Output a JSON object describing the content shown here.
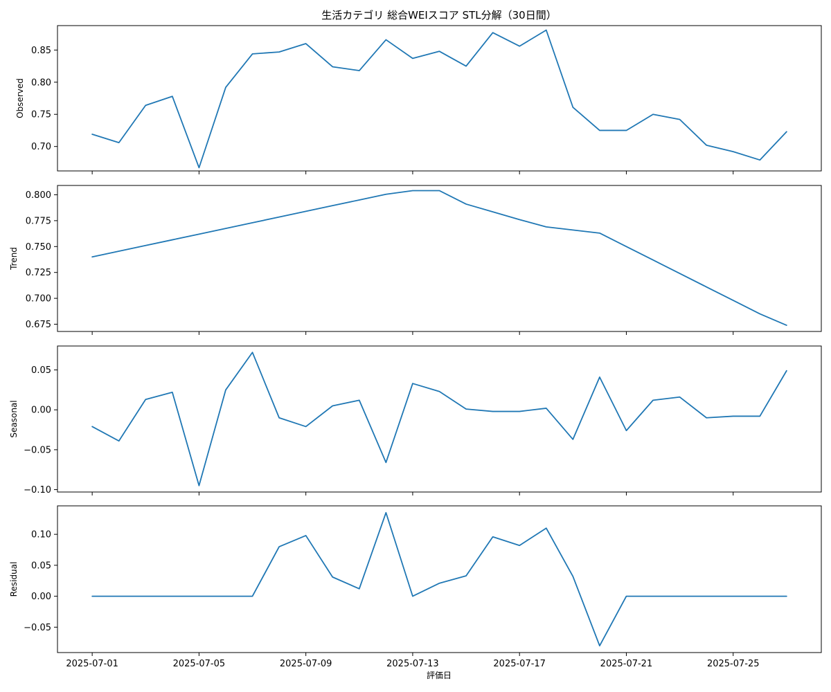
{
  "colors": {
    "line": "#1f77b4",
    "axis": "#000000",
    "background": "#ffffff"
  },
  "chart_data": {
    "type": "line",
    "title": "生活カテゴリ 総合WEIスコア STL分解（30日間）",
    "xlabel": "評価日",
    "grid": false,
    "x_start": "2025-07-01",
    "x_end": "2025-07-27",
    "x_ticks": [
      "2025-07-01",
      "2025-07-05",
      "2025-07-09",
      "2025-07-13",
      "2025-07-17",
      "2025-07-21",
      "2025-07-25"
    ],
    "x": [
      "2025-07-01",
      "2025-07-02",
      "2025-07-03",
      "2025-07-04",
      "2025-07-05",
      "2025-07-06",
      "2025-07-07",
      "2025-07-08",
      "2025-07-09",
      "2025-07-10",
      "2025-07-11",
      "2025-07-12",
      "2025-07-13",
      "2025-07-14",
      "2025-07-15",
      "2025-07-16",
      "2025-07-17",
      "2025-07-18",
      "2025-07-19",
      "2025-07-20",
      "2025-07-21",
      "2025-07-22",
      "2025-07-23",
      "2025-07-24",
      "2025-07-25",
      "2025-07-26",
      "2025-07-27"
    ],
    "panels": [
      {
        "ylabel": "Observed",
        "ylim": [
          0.662,
          0.888
        ],
        "yticks": [
          0.7,
          0.75,
          0.8,
          0.85
        ],
        "ytick_labels": [
          "0.70",
          "0.75",
          "0.80",
          "0.85"
        ],
        "values": [
          0.719,
          0.706,
          0.764,
          0.778,
          0.667,
          0.792,
          0.844,
          0.847,
          0.86,
          0.824,
          0.818,
          0.866,
          0.837,
          0.848,
          0.825,
          0.877,
          0.856,
          0.881,
          0.761,
          0.725,
          0.725,
          0.75,
          0.742,
          0.702,
          0.692,
          0.679,
          0.723
        ]
      },
      {
        "ylabel": "Trend",
        "ylim": [
          0.668,
          0.809
        ],
        "yticks": [
          0.675,
          0.7,
          0.725,
          0.75,
          0.775,
          0.8
        ],
        "ytick_labels": [
          "0.675",
          "0.700",
          "0.725",
          "0.750",
          "0.775",
          "0.800"
        ],
        "values": [
          0.74,
          0.7455,
          0.751,
          0.7565,
          0.762,
          0.7675,
          0.773,
          0.7785,
          0.784,
          0.7895,
          0.795,
          0.8005,
          0.804,
          0.804,
          0.791,
          0.7835,
          0.776,
          0.769,
          0.766,
          0.763,
          0.75,
          0.737,
          0.724,
          0.711,
          0.698,
          0.685,
          0.674
        ]
      },
      {
        "ylabel": "Seasonal",
        "ylim": [
          -0.103,
          0.08
        ],
        "yticks": [
          -0.1,
          -0.05,
          0.0,
          0.05
        ],
        "ytick_labels": [
          "−0.10",
          "−0.05",
          "0.00",
          "0.05"
        ],
        "values": [
          -0.021,
          -0.039,
          0.013,
          0.022,
          -0.095,
          0.025,
          0.072,
          -0.01,
          -0.021,
          0.005,
          0.012,
          -0.066,
          0.033,
          0.023,
          0.001,
          -0.002,
          -0.002,
          0.002,
          -0.037,
          0.041,
          -0.026,
          0.012,
          0.016,
          -0.01,
          -0.008,
          -0.008,
          0.049
        ]
      },
      {
        "ylabel": "Residual",
        "ylim": [
          -0.091,
          0.146
        ],
        "yticks": [
          -0.05,
          0.0,
          0.05,
          0.1
        ],
        "ytick_labels": [
          "−0.05",
          "0.00",
          "0.05",
          "0.10"
        ],
        "values": [
          0.0,
          0.0,
          0.0,
          0.0,
          0.0,
          0.0,
          0.0,
          0.08,
          0.098,
          0.031,
          0.012,
          0.135,
          0.0,
          0.021,
          0.033,
          0.096,
          0.082,
          0.11,
          0.032,
          -0.08,
          0.0,
          0.0,
          0.0,
          0.0,
          0.0,
          0.0,
          0.0
        ]
      }
    ]
  }
}
